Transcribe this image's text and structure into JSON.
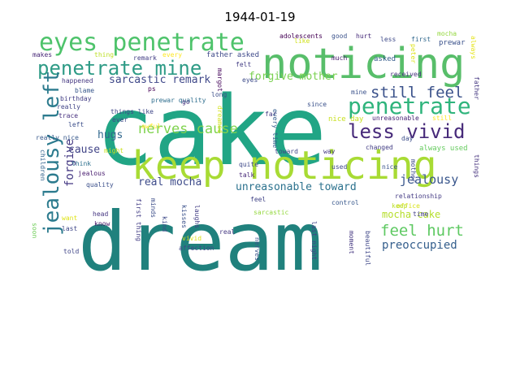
{
  "title": "1944-01-19",
  "words": [
    {
      "text": "cake",
      "color": "#21a585"
    },
    {
      "text": "dream",
      "color": "#20817d"
    },
    {
      "text": "noticing",
      "color": "#58be6a"
    },
    {
      "text": "keep noticing",
      "color": "#a8db34"
    },
    {
      "text": "eyes penetrate",
      "color": "#4ec36b"
    },
    {
      "text": "penetrate mine",
      "color": "#2e9b86"
    },
    {
      "text": "jealousy left",
      "color": "#2c7b8e"
    },
    {
      "text": "penetrate",
      "color": "#2fb47c"
    },
    {
      "text": "less vivid",
      "color": "#472a7a"
    },
    {
      "text": "still feel",
      "color": "#3b528b"
    },
    {
      "text": "feel hurt",
      "color": "#5ec962"
    },
    {
      "text": "nerves cause",
      "color": "#7fd34e"
    },
    {
      "text": "forgive",
      "color": "#443983"
    },
    {
      "text": "jealousy",
      "color": "#39568c"
    },
    {
      "text": "sarcastic remark",
      "color": "#3f4889"
    },
    {
      "text": "forgive mother",
      "color": "#7ad151"
    },
    {
      "text": "unreasonable toward",
      "color": "#2c728e"
    },
    {
      "text": "preoccupied",
      "color": "#355f8d"
    },
    {
      "text": "real mocha",
      "color": "#3e4c8a"
    },
    {
      "text": "mocha cake",
      "color": "#b5de2b"
    },
    {
      "text": "hugs",
      "color": "#31688e"
    },
    {
      "text": "cause",
      "color": "#414487"
    },
    {
      "text": "nice day",
      "color": "#c8e020"
    },
    {
      "text": "always used",
      "color": "#65cb5e"
    },
    {
      "text": "adolescents",
      "color": "#440154"
    },
    {
      "text": "good",
      "color": "#3b528b"
    },
    {
      "text": "hurt",
      "color": "#472c7a"
    },
    {
      "text": "less",
      "color": "#3e4a89"
    },
    {
      "text": "first",
      "color": "#31688e"
    },
    {
      "text": "mocha",
      "color": "#95d840"
    },
    {
      "text": "prewar",
      "color": "#3b528b"
    },
    {
      "text": "makes",
      "color": "#482878"
    },
    {
      "text": "thing",
      "color": "#bddf26"
    },
    {
      "text": "remark",
      "color": "#433e85"
    },
    {
      "text": "every",
      "color": "#fde725"
    },
    {
      "text": "father asked",
      "color": "#3e4989"
    },
    {
      "text": "felt",
      "color": "#433d84"
    },
    {
      "text": "like",
      "color": "#d0e11c"
    },
    {
      "text": "much",
      "color": "#481f70"
    },
    {
      "text": "asked",
      "color": "#365c8d"
    },
    {
      "text": "always",
      "color": "#e5e419"
    },
    {
      "text": "peter",
      "color": "#dde318"
    },
    {
      "text": "received",
      "color": "#46327e"
    },
    {
      "text": "happened",
      "color": "#453781"
    },
    {
      "text": "ps",
      "color": "#440154"
    },
    {
      "text": "margot",
      "color": "#46085c"
    },
    {
      "text": "eyes",
      "color": "#3e4c8a"
    },
    {
      "text": "blame",
      "color": "#38588c"
    },
    {
      "text": "prewar quality",
      "color": "#2e6e8e"
    },
    {
      "text": "long",
      "color": "#3d4e8a"
    },
    {
      "text": "mine",
      "color": "#3b528b"
    },
    {
      "text": "birthday",
      "color": "#433e85"
    },
    {
      "text": "go",
      "color": "#46337f"
    },
    {
      "text": "really",
      "color": "#414487"
    },
    {
      "text": "things like",
      "color": "#3f4788"
    },
    {
      "text": "far",
      "color": "#443a83"
    },
    {
      "text": "since",
      "color": "#3b528b"
    },
    {
      "text": "unreasonable",
      "color": "#482475"
    },
    {
      "text": "still",
      "color": "#fde725"
    },
    {
      "text": "father",
      "color": "#453882"
    },
    {
      "text": "trace",
      "color": "#46307e"
    },
    {
      "text": "ever",
      "color": "#3e4989"
    },
    {
      "text": "dreamed",
      "color": "#d2e21b"
    },
    {
      "text": "every time",
      "color": "#355e8d"
    },
    {
      "text": "left",
      "color": "#3c4f8a"
    },
    {
      "text": "awful",
      "color": "#fde725"
    },
    {
      "text": "really nice",
      "color": "#38598c"
    },
    {
      "text": "might",
      "color": "#cae11f"
    },
    {
      "text": "toward",
      "color": "#3f4788"
    },
    {
      "text": "way",
      "color": "#453882"
    },
    {
      "text": "changed",
      "color": "#433e85"
    },
    {
      "text": "day",
      "color": "#3d4e8a"
    },
    {
      "text": "children",
      "color": "#33638d"
    },
    {
      "text": "think",
      "color": "#2d708e"
    },
    {
      "text": "jealous",
      "color": "#481d6f"
    },
    {
      "text": "quality",
      "color": "#3c508b"
    },
    {
      "text": "talk",
      "color": "#482979"
    },
    {
      "text": "quite",
      "color": "#3e4989"
    },
    {
      "text": "used",
      "color": "#3f4889"
    },
    {
      "text": "nice",
      "color": "#3a548c"
    },
    {
      "text": "mother",
      "color": "#3e4a89"
    },
    {
      "text": "relationship",
      "color": "#443b84"
    },
    {
      "text": "things",
      "color": "#46327e"
    },
    {
      "text": "office",
      "color": "#d8e219"
    },
    {
      "text": "keep",
      "color": "#bade28"
    },
    {
      "text": "head",
      "color": "#453581"
    },
    {
      "text": "want",
      "color": "#dfe318"
    },
    {
      "text": "know",
      "color": "#481467"
    },
    {
      "text": "last",
      "color": "#3f4788"
    },
    {
      "text": "soon",
      "color": "#6ece58"
    },
    {
      "text": "told",
      "color": "#404688"
    },
    {
      "text": "first thing",
      "color": "#433e85"
    },
    {
      "text": "minds",
      "color": "#3d4e8a"
    },
    {
      "text": "kind",
      "color": "#3e4a89"
    },
    {
      "text": "kisses",
      "color": "#3b518b"
    },
    {
      "text": "laughs",
      "color": "#433e85"
    },
    {
      "text": "vivid",
      "color": "#d8e219"
    },
    {
      "text": "affection",
      "color": "#3e4989"
    },
    {
      "text": "real",
      "color": "#453882"
    },
    {
      "text": "nerves",
      "color": "#3a548c"
    },
    {
      "text": "sarcastic",
      "color": "#95d840"
    },
    {
      "text": "feel",
      "color": "#414487"
    },
    {
      "text": "last night",
      "color": "#404387"
    },
    {
      "text": "control",
      "color": "#38588c"
    },
    {
      "text": "moment",
      "color": "#453781"
    },
    {
      "text": "beautiful",
      "color": "#3f4788"
    },
    {
      "text": "time",
      "color": "#433e85"
    }
  ]
}
